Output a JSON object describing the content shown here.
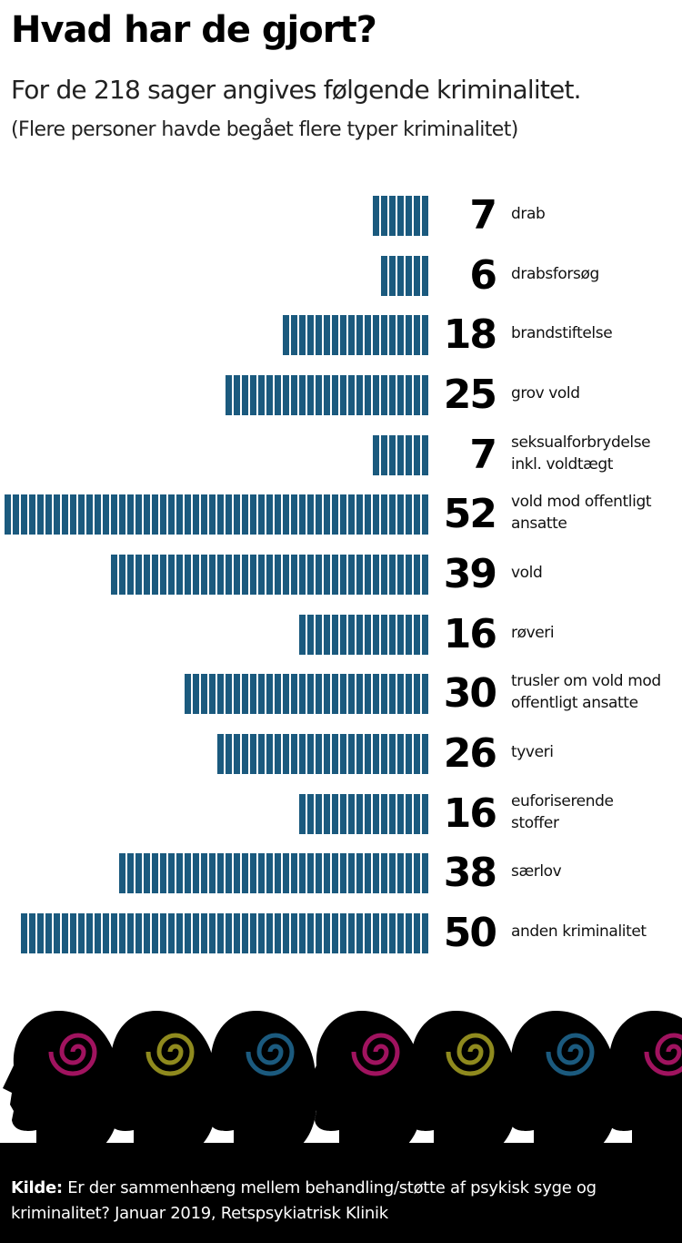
{
  "chart_data": {
    "type": "bar",
    "orientation": "horizontal",
    "title": "Hvad har de gjort?",
    "subtitle": "For de 218 sager angives følgende kriminalitet.",
    "note": "(Flere personer havde begået flere typer kriminalitet)",
    "categories": [
      "drab",
      "drabsforsøg",
      "brandstiftelse",
      "grov vold",
      "seksualforbrydelse\ninkl. voldtægt",
      "vold mod offentligt\nansatte",
      "vold",
      "røveri",
      "trusler om vold mod\noffentligt ansatte",
      "tyveri",
      "euforiserende\nstoffer",
      "særlov",
      "anden kriminalitet"
    ],
    "values": [
      7,
      6,
      18,
      25,
      7,
      52,
      39,
      16,
      30,
      26,
      16,
      38,
      50
    ],
    "color": "#1b5a7e",
    "source": {
      "label": "Kilde:",
      "text": "Er der sammenhæng mellem behandling/støtte af psykisk syge og kriminalitet? Januar 2019, Retspsykiatrisk Klinik"
    }
  }
}
